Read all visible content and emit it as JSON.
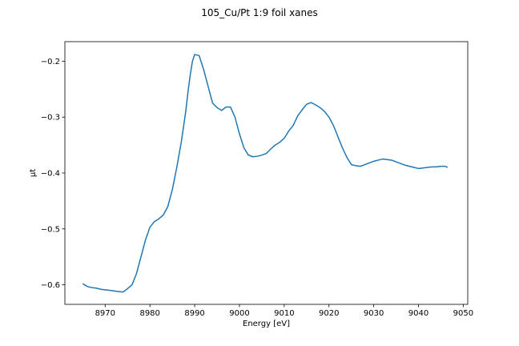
{
  "chart_data": {
    "type": "line",
    "title": "105_Cu/Pt 1:9 foil xanes",
    "xlabel": "Energy [eV]",
    "ylabel": "μt",
    "xlim": [
      8961.0,
      9051.0
    ],
    "ylim": [
      -0.635,
      -0.165
    ],
    "x_ticks": [
      8970,
      8980,
      8990,
      9000,
      9010,
      9020,
      9030,
      9040,
      9050
    ],
    "x_tick_labels": [
      "8970",
      "8980",
      "8990",
      "9000",
      "9010",
      "9020",
      "9030",
      "9040",
      "9050"
    ],
    "y_ticks": [
      -0.6,
      -0.5,
      -0.4,
      -0.3,
      -0.2
    ],
    "y_tick_labels": [
      "−0.6",
      "−0.5",
      "−0.4",
      "−0.3",
      "−0.2"
    ],
    "grid": false,
    "legend": "none",
    "series": [
      {
        "color": "#1f77b4",
        "x": [
          8965.0,
          8966.0,
          8967.0,
          8968.0,
          8969.0,
          8970.0,
          8971.0,
          8972.0,
          8973.0,
          8974.0,
          8975.0,
          8976.0,
          8977.0,
          8978.0,
          8979.0,
          8980.0,
          8981.0,
          8982.0,
          8983.0,
          8984.0,
          8985.0,
          8986.0,
          8987.0,
          8988.0,
          8988.5,
          8989.0,
          8989.5,
          8990.0,
          8991.0,
          8992.0,
          8993.0,
          8994.0,
          8995.0,
          8996.0,
          8997.0,
          8998.0,
          8999.0,
          9000.0,
          9001.0,
          9002.0,
          9003.0,
          9004.0,
          9005.0,
          9006.0,
          9007.0,
          9008.0,
          9009.0,
          9010.0,
          9011.0,
          9012.0,
          9013.0,
          9014.0,
          9015.0,
          9016.0,
          9017.0,
          9018.0,
          9019.0,
          9020.0,
          9021.0,
          9022.0,
          9023.0,
          9024.0,
          9025.0,
          9026.0,
          9027.0,
          9028.0,
          9029.0,
          9030.0,
          9031.0,
          9032.0,
          9033.0,
          9034.0,
          9035.0,
          9036.0,
          9037.0,
          9038.0,
          9039.0,
          9040.0,
          9041.0,
          9042.0,
          9043.0,
          9044.0,
          9045.0,
          9046.0,
          9046.5
        ],
        "y": [
          -0.598,
          -0.603,
          -0.605,
          -0.606,
          -0.608,
          -0.609,
          -0.61,
          -0.611,
          -0.612,
          -0.613,
          -0.607,
          -0.6,
          -0.58,
          -0.55,
          -0.52,
          -0.497,
          -0.487,
          -0.482,
          -0.475,
          -0.46,
          -0.43,
          -0.39,
          -0.345,
          -0.29,
          -0.255,
          -0.225,
          -0.2,
          -0.188,
          -0.19,
          -0.215,
          -0.245,
          -0.275,
          -0.283,
          -0.288,
          -0.282,
          -0.282,
          -0.3,
          -0.33,
          -0.355,
          -0.368,
          -0.371,
          -0.37,
          -0.368,
          -0.365,
          -0.357,
          -0.35,
          -0.345,
          -0.338,
          -0.325,
          -0.315,
          -0.298,
          -0.287,
          -0.277,
          -0.274,
          -0.278,
          -0.283,
          -0.29,
          -0.3,
          -0.315,
          -0.335,
          -0.355,
          -0.372,
          -0.385,
          -0.387,
          -0.388,
          -0.385,
          -0.382,
          -0.379,
          -0.377,
          -0.375,
          -0.376,
          -0.377,
          -0.38,
          -0.383,
          -0.386,
          -0.388,
          -0.39,
          -0.392,
          -0.391,
          -0.39,
          -0.389,
          -0.389,
          -0.388,
          -0.388,
          -0.39
        ]
      }
    ]
  }
}
